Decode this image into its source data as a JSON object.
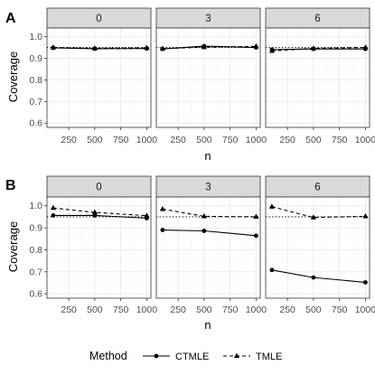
{
  "chart_data": [
    {
      "type": "line",
      "panel_tag": "A",
      "xlabel": "n",
      "ylabel": "Coverage",
      "ylim": [
        0.58,
        1.04
      ],
      "yticks": [
        0.6,
        0.7,
        0.8,
        0.9,
        1.0
      ],
      "ytick_labels": [
        "0.6",
        "0.7",
        "0.8",
        "0.9",
        "1.0"
      ],
      "xlim": [
        40,
        1040
      ],
      "xticks": [
        250,
        500,
        750,
        1000
      ],
      "xtick_labels": [
        "250",
        "500",
        "750",
        "1000"
      ],
      "reference_line": 0.95,
      "grid": true,
      "facets": [
        {
          "label": "0",
          "x": [
            100,
            500,
            1000
          ],
          "series": [
            {
              "name": "CTMLE",
              "values": [
                0.948,
                0.944,
                0.945
              ]
            },
            {
              "name": "TMLE",
              "values": [
                0.95,
                0.946,
                0.948
              ]
            }
          ]
        },
        {
          "label": "3",
          "x": [
            100,
            500,
            1000
          ],
          "series": [
            {
              "name": "CTMLE",
              "values": [
                0.943,
                0.956,
                0.95
              ]
            },
            {
              "name": "TMLE",
              "values": [
                0.945,
                0.951,
                0.955
              ]
            }
          ]
        },
        {
          "label": "6",
          "x": [
            100,
            500,
            1000
          ],
          "series": [
            {
              "name": "CTMLE",
              "values": [
                0.94,
                0.943,
                0.943
              ]
            },
            {
              "name": "TMLE",
              "values": [
                0.934,
                0.946,
                0.95
              ]
            }
          ]
        }
      ]
    },
    {
      "type": "line",
      "panel_tag": "B",
      "xlabel": "n",
      "ylabel": "Coverage",
      "ylim": [
        0.58,
        1.04
      ],
      "yticks": [
        0.6,
        0.7,
        0.8,
        0.9,
        1.0
      ],
      "ytick_labels": [
        "0.6",
        "0.7",
        "0.8",
        "0.9",
        "1.0"
      ],
      "xlim": [
        40,
        1040
      ],
      "xticks": [
        250,
        500,
        750,
        1000
      ],
      "xtick_labels": [
        "250",
        "500",
        "750",
        "1000"
      ],
      "reference_line": 0.95,
      "grid": true,
      "facets": [
        {
          "label": "0",
          "x": [
            100,
            500,
            1000
          ],
          "series": [
            {
              "name": "CTMLE",
              "values": [
                0.956,
                0.956,
                0.944
              ]
            },
            {
              "name": "TMLE",
              "values": [
                0.99,
                0.97,
                0.955
              ]
            }
          ]
        },
        {
          "label": "3",
          "x": [
            100,
            500,
            1000
          ],
          "series": [
            {
              "name": "CTMLE",
              "values": [
                0.89,
                0.886,
                0.864
              ]
            },
            {
              "name": "TMLE",
              "values": [
                0.985,
                0.952,
                0.95
              ]
            }
          ]
        },
        {
          "label": "6",
          "x": [
            100,
            500,
            1000
          ],
          "series": [
            {
              "name": "CTMLE",
              "values": [
                0.708,
                0.674,
                0.652
              ]
            },
            {
              "name": "TMLE",
              "values": [
                0.996,
                0.947,
                0.952
              ]
            }
          ]
        }
      ]
    }
  ],
  "legend": {
    "title": "Method",
    "position": "bottom",
    "items": [
      {
        "label": "CTMLE",
        "marker": "circle",
        "line": "solid"
      },
      {
        "label": "TMLE",
        "marker": "triangle",
        "line": "dashed"
      }
    ]
  },
  "colors": {
    "strip_fill": "#d9d9d9",
    "border": "#333333",
    "grid_major": "#ebebeb",
    "grid_minor": "#f5f5f5",
    "series": "#000000"
  }
}
